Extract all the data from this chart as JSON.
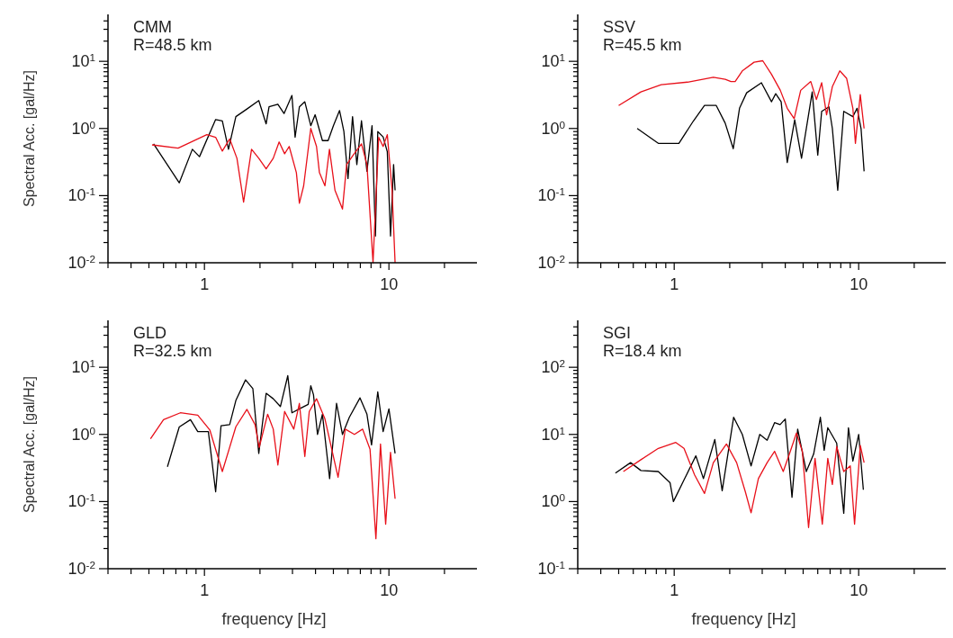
{
  "chart_data": [
    {
      "type": "line",
      "log": "xy",
      "annotations": [
        "CMM",
        "R=48.5 km"
      ],
      "ylabel": "Spectral Acc. [gal/Hz]",
      "xlim": [
        0.3,
        30
      ],
      "ylim": [
        0.01,
        50
      ],
      "xticks": [
        {
          "value": 0.3,
          "label": null
        },
        {
          "value": 0.4,
          "label": null
        },
        {
          "value": 0.5,
          "label": null
        },
        {
          "value": 0.6,
          "label": null
        },
        {
          "value": 0.7,
          "label": null
        },
        {
          "value": 0.8,
          "label": null
        },
        {
          "value": 0.9,
          "label": null
        },
        {
          "value": 1,
          "label": "1"
        },
        {
          "value": 2,
          "label": null
        },
        {
          "value": 3,
          "label": null
        },
        {
          "value": 4,
          "label": null
        },
        {
          "value": 5,
          "label": null
        },
        {
          "value": 6,
          "label": null
        },
        {
          "value": 7,
          "label": null
        },
        {
          "value": 8,
          "label": null
        },
        {
          "value": 9,
          "label": null
        },
        {
          "value": 10,
          "label": "10"
        },
        {
          "value": 20,
          "label": null
        }
      ],
      "yticks": [
        {
          "value": 0.01,
          "label": "10$^{-2}$"
        },
        {
          "value": 0.02,
          "label": null
        },
        {
          "value": 0.03,
          "label": null
        },
        {
          "value": 0.04,
          "label": null
        },
        {
          "value": 0.05,
          "label": null
        },
        {
          "value": 0.06,
          "label": null
        },
        {
          "value": 0.07,
          "label": null
        },
        {
          "value": 0.08,
          "label": null
        },
        {
          "value": 0.09,
          "label": null
        },
        {
          "value": 0.1,
          "label": "10$^{-1}$"
        },
        {
          "value": 0.2,
          "label": null
        },
        {
          "value": 0.3,
          "label": null
        },
        {
          "value": 0.4,
          "label": null
        },
        {
          "value": 0.5,
          "label": null
        },
        {
          "value": 0.6,
          "label": null
        },
        {
          "value": 0.7,
          "label": null
        },
        {
          "value": 0.8,
          "label": null
        },
        {
          "value": 0.9,
          "label": null
        },
        {
          "value": 1,
          "label": "10$^{0}$"
        },
        {
          "value": 2,
          "label": null
        },
        {
          "value": 3,
          "label": null
        },
        {
          "value": 4,
          "label": null
        },
        {
          "value": 5,
          "label": null
        },
        {
          "value": 6,
          "label": null
        },
        {
          "value": 7,
          "label": null
        },
        {
          "value": 8,
          "label": null
        },
        {
          "value": 9,
          "label": null
        },
        {
          "value": 10,
          "label": "10$^{1}$"
        },
        {
          "value": 20,
          "label": null
        },
        {
          "value": 30,
          "label": null
        },
        {
          "value": 40,
          "label": null
        }
      ],
      "series": [
        {
          "color": "#000000",
          "x": [
            0.53,
            0.73,
            0.86,
            0.94,
            1.15,
            1.25,
            1.35,
            1.48,
            1.7,
            1.97,
            2.16,
            2.24,
            2.5,
            2.7,
            2.98,
            3.1,
            3.27,
            3.5,
            3.77,
            3.98,
            4.36,
            4.68,
            5.0,
            5.4,
            5.7,
            6.0,
            6.35,
            6.7,
            7.1,
            7.6,
            8.1,
            8.45,
            8.7,
            9.3,
            9.8,
            10.2,
            10.6,
            10.8
          ],
          "values": [
            0.59,
            0.155,
            0.49,
            0.38,
            1.36,
            1.3,
            0.49,
            1.5,
            1.95,
            2.6,
            1.17,
            2.1,
            2.3,
            1.67,
            3.1,
            0.74,
            2.1,
            2.5,
            1.1,
            1.6,
            0.66,
            0.66,
            1.1,
            1.85,
            0.9,
            0.18,
            1.5,
            0.29,
            1.3,
            0.23,
            1.1,
            0.025,
            0.9,
            0.75,
            0.45,
            0.025,
            0.29,
            0.12
          ]
        },
        {
          "color": "#e8101a",
          "x": [
            0.52,
            0.72,
            1.03,
            1.15,
            1.25,
            1.37,
            1.5,
            1.63,
            1.8,
            1.97,
            2.16,
            2.36,
            2.54,
            2.72,
            2.88,
            3.15,
            3.27,
            3.45,
            3.77,
            4.05,
            4.2,
            4.5,
            4.76,
            5.1,
            5.6,
            5.9,
            6.4,
            7.1,
            7.6,
            8.2,
            8.8,
            9.3,
            9.8,
            10.4,
            10.8
          ],
          "values": [
            0.57,
            0.51,
            0.81,
            0.74,
            0.46,
            0.7,
            0.36,
            0.08,
            0.49,
            0.36,
            0.25,
            0.36,
            0.63,
            0.42,
            0.54,
            0.22,
            0.077,
            0.14,
            1.0,
            0.54,
            0.22,
            0.14,
            0.49,
            0.12,
            0.063,
            0.29,
            0.4,
            0.59,
            0.29,
            0.01,
            0.74,
            0.54,
            0.81,
            0.12,
            0.01
          ]
        }
      ]
    },
    {
      "type": "line",
      "log": "xy",
      "annotations": [
        "SSV",
        "R=45.5 km"
      ],
      "xlim": [
        0.3,
        30
      ],
      "ylim": [
        0.01,
        50
      ],
      "xticks": [
        {
          "value": 0.3,
          "label": null
        },
        {
          "value": 0.4,
          "label": null
        },
        {
          "value": 0.5,
          "label": null
        },
        {
          "value": 0.6,
          "label": null
        },
        {
          "value": 0.7,
          "label": null
        },
        {
          "value": 0.8,
          "label": null
        },
        {
          "value": 0.9,
          "label": null
        },
        {
          "value": 1,
          "label": "1"
        },
        {
          "value": 2,
          "label": null
        },
        {
          "value": 3,
          "label": null
        },
        {
          "value": 4,
          "label": null
        },
        {
          "value": 5,
          "label": null
        },
        {
          "value": 6,
          "label": null
        },
        {
          "value": 7,
          "label": null
        },
        {
          "value": 8,
          "label": null
        },
        {
          "value": 9,
          "label": null
        },
        {
          "value": 10,
          "label": "10"
        },
        {
          "value": 20,
          "label": null
        }
      ],
      "yticks": [
        {
          "value": 0.01,
          "label": "10$^{-2}$"
        },
        {
          "value": 0.02,
          "label": null
        },
        {
          "value": 0.03,
          "label": null
        },
        {
          "value": 0.04,
          "label": null
        },
        {
          "value": 0.05,
          "label": null
        },
        {
          "value": 0.06,
          "label": null
        },
        {
          "value": 0.07,
          "label": null
        },
        {
          "value": 0.08,
          "label": null
        },
        {
          "value": 0.09,
          "label": null
        },
        {
          "value": 0.1,
          "label": "10$^{-1}$"
        },
        {
          "value": 0.2,
          "label": null
        },
        {
          "value": 0.3,
          "label": null
        },
        {
          "value": 0.4,
          "label": null
        },
        {
          "value": 0.5,
          "label": null
        },
        {
          "value": 0.6,
          "label": null
        },
        {
          "value": 0.7,
          "label": null
        },
        {
          "value": 0.8,
          "label": null
        },
        {
          "value": 0.9,
          "label": null
        },
        {
          "value": 1,
          "label": "10$^{0}$"
        },
        {
          "value": 2,
          "label": null
        },
        {
          "value": 3,
          "label": null
        },
        {
          "value": 4,
          "label": null
        },
        {
          "value": 5,
          "label": null
        },
        {
          "value": 6,
          "label": null
        },
        {
          "value": 7,
          "label": null
        },
        {
          "value": 8,
          "label": null
        },
        {
          "value": 9,
          "label": null
        },
        {
          "value": 10,
          "label": "10$^{1}$"
        },
        {
          "value": 20,
          "label": null
        },
        {
          "value": 30,
          "label": null
        },
        {
          "value": 40,
          "label": null
        }
      ],
      "series": [
        {
          "color": "#000000",
          "x": [
            0.63,
            0.82,
            1.06,
            1.27,
            1.46,
            1.69,
            1.89,
            2.09,
            2.26,
            2.47,
            2.97,
            3.37,
            3.55,
            3.8,
            4.1,
            4.5,
            4.9,
            5.6,
            6.0,
            6.3,
            6.9,
            7.2,
            7.7,
            8.3,
            9.3,
            9.8,
            10.3,
            10.7
          ],
          "values": [
            1.0,
            0.6,
            0.6,
            1.29,
            2.2,
            2.2,
            1.2,
            0.5,
            2.0,
            3.4,
            4.8,
            2.5,
            3.3,
            2.5,
            0.31,
            1.35,
            0.36,
            3.5,
            0.4,
            1.8,
            2.1,
            1.0,
            0.12,
            1.8,
            1.5,
            2.0,
            1.0,
            0.23
          ]
        },
        {
          "color": "#e8101a",
          "x": [
            0.5,
            0.66,
            0.85,
            1.18,
            1.63,
            1.89,
            2.03,
            2.14,
            2.34,
            2.71,
            3.02,
            3.37,
            3.76,
            4.1,
            4.47,
            4.85,
            5.5,
            5.9,
            6.3,
            6.7,
            7.2,
            7.9,
            8.6,
            9.3,
            9.6,
            10.2,
            10.7
          ],
          "values": [
            2.2,
            3.5,
            4.5,
            4.9,
            5.8,
            5.4,
            5.0,
            5.0,
            7.2,
            9.7,
            10.2,
            6.4,
            3.7,
            2.0,
            1.4,
            3.7,
            5.0,
            2.7,
            4.8,
            1.6,
            4.2,
            7.2,
            5.6,
            2.0,
            0.6,
            3.2,
            1.0
          ]
        }
      ]
    },
    {
      "type": "line",
      "log": "xy",
      "annotations": [
        "GLD",
        "R=32.5 km"
      ],
      "xlabel": "frequency [Hz]",
      "ylabel": "Spectral Acc. [gal/Hz]",
      "xlim": [
        0.3,
        30
      ],
      "ylim": [
        0.01,
        50
      ],
      "xticks": [
        {
          "value": 0.3,
          "label": null
        },
        {
          "value": 0.4,
          "label": null
        },
        {
          "value": 0.5,
          "label": null
        },
        {
          "value": 0.6,
          "label": null
        },
        {
          "value": 0.7,
          "label": null
        },
        {
          "value": 0.8,
          "label": null
        },
        {
          "value": 0.9,
          "label": null
        },
        {
          "value": 1,
          "label": "1"
        },
        {
          "value": 2,
          "label": null
        },
        {
          "value": 3,
          "label": null
        },
        {
          "value": 4,
          "label": null
        },
        {
          "value": 5,
          "label": null
        },
        {
          "value": 6,
          "label": null
        },
        {
          "value": 7,
          "label": null
        },
        {
          "value": 8,
          "label": null
        },
        {
          "value": 9,
          "label": null
        },
        {
          "value": 10,
          "label": "10"
        },
        {
          "value": 20,
          "label": null
        }
      ],
      "yticks": [
        {
          "value": 0.01,
          "label": "10$^{-2}$"
        },
        {
          "value": 0.02,
          "label": null
        },
        {
          "value": 0.03,
          "label": null
        },
        {
          "value": 0.04,
          "label": null
        },
        {
          "value": 0.05,
          "label": null
        },
        {
          "value": 0.06,
          "label": null
        },
        {
          "value": 0.07,
          "label": null
        },
        {
          "value": 0.08,
          "label": null
        },
        {
          "value": 0.09,
          "label": null
        },
        {
          "value": 0.1,
          "label": "10$^{-1}$"
        },
        {
          "value": 0.2,
          "label": null
        },
        {
          "value": 0.3,
          "label": null
        },
        {
          "value": 0.4,
          "label": null
        },
        {
          "value": 0.5,
          "label": null
        },
        {
          "value": 0.6,
          "label": null
        },
        {
          "value": 0.7,
          "label": null
        },
        {
          "value": 0.8,
          "label": null
        },
        {
          "value": 0.9,
          "label": null
        },
        {
          "value": 1,
          "label": "10$^{0}$"
        },
        {
          "value": 2,
          "label": null
        },
        {
          "value": 3,
          "label": null
        },
        {
          "value": 4,
          "label": null
        },
        {
          "value": 5,
          "label": null
        },
        {
          "value": 6,
          "label": null
        },
        {
          "value": 7,
          "label": null
        },
        {
          "value": 8,
          "label": null
        },
        {
          "value": 9,
          "label": null
        },
        {
          "value": 10,
          "label": "10$^{1}$"
        },
        {
          "value": 20,
          "label": null
        },
        {
          "value": 30,
          "label": null
        },
        {
          "value": 40,
          "label": null
        }
      ],
      "series": [
        {
          "color": "#000000",
          "x": [
            0.63,
            0.73,
            0.84,
            0.92,
            1.05,
            1.15,
            1.23,
            1.37,
            1.48,
            1.67,
            1.83,
            1.97,
            2.16,
            2.36,
            2.58,
            2.83,
            2.98,
            3.27,
            3.65,
            3.77,
            3.9,
            4.1,
            4.36,
            4.77,
            5.2,
            5.6,
            6.1,
            6.97,
            7.6,
            8.05,
            8.7,
            9.3,
            10.0,
            10.8
          ],
          "values": [
            0.33,
            1.29,
            1.66,
            1.1,
            1.1,
            0.14,
            1.35,
            1.4,
            3.2,
            6.5,
            4.8,
            0.52,
            4.1,
            3.4,
            2.6,
            7.5,
            2.1,
            2.4,
            2.8,
            5.3,
            3.9,
            1.0,
            2.0,
            0.22,
            2.9,
            1.0,
            1.8,
            3.5,
            2.0,
            0.7,
            4.3,
            1.1,
            2.4,
            0.52
          ]
        },
        {
          "color": "#e8101a",
          "x": [
            0.51,
            0.6,
            0.74,
            0.92,
            1.07,
            1.25,
            1.48,
            1.7,
            1.88,
            1.98,
            2.2,
            2.36,
            2.5,
            2.72,
            3.05,
            3.27,
            3.5,
            3.7,
            4.05,
            4.5,
            5.3,
            5.8,
            6.5,
            7.2,
            7.9,
            8.5,
            9.0,
            9.6,
            10.2,
            10.8
          ],
          "values": [
            0.86,
            1.66,
            2.1,
            1.93,
            1.16,
            0.28,
            1.3,
            2.36,
            1.4,
            0.64,
            2.0,
            1.2,
            0.35,
            2.2,
            1.2,
            2.9,
            0.47,
            2.2,
            3.4,
            1.7,
            0.23,
            1.2,
            1.0,
            1.2,
            0.6,
            0.028,
            0.72,
            0.046,
            0.54,
            0.11
          ]
        }
      ]
    },
    {
      "type": "line",
      "log": "xy",
      "annotations": [
        "SGI",
        "R=18.4 km"
      ],
      "xlabel": "frequency [Hz]",
      "xlim": [
        0.3,
        30
      ],
      "ylim": [
        0.1,
        500
      ],
      "xticks": [
        {
          "value": 0.3,
          "label": null
        },
        {
          "value": 0.4,
          "label": null
        },
        {
          "value": 0.5,
          "label": null
        },
        {
          "value": 0.6,
          "label": null
        },
        {
          "value": 0.7,
          "label": null
        },
        {
          "value": 0.8,
          "label": null
        },
        {
          "value": 0.9,
          "label": null
        },
        {
          "value": 1,
          "label": "1"
        },
        {
          "value": 2,
          "label": null
        },
        {
          "value": 3,
          "label": null
        },
        {
          "value": 4,
          "label": null
        },
        {
          "value": 5,
          "label": null
        },
        {
          "value": 6,
          "label": null
        },
        {
          "value": 7,
          "label": null
        },
        {
          "value": 8,
          "label": null
        },
        {
          "value": 9,
          "label": null
        },
        {
          "value": 10,
          "label": "10"
        },
        {
          "value": 20,
          "label": null
        }
      ],
      "yticks": [
        {
          "value": 0.1,
          "label": "10$^{-1}$"
        },
        {
          "value": 0.2,
          "label": null
        },
        {
          "value": 0.3,
          "label": null
        },
        {
          "value": 0.4,
          "label": null
        },
        {
          "value": 0.5,
          "label": null
        },
        {
          "value": 0.6,
          "label": null
        },
        {
          "value": 0.7,
          "label": null
        },
        {
          "value": 0.8,
          "label": null
        },
        {
          "value": 0.9,
          "label": null
        },
        {
          "value": 1,
          "label": "10$^{0}$"
        },
        {
          "value": 2,
          "label": null
        },
        {
          "value": 3,
          "label": null
        },
        {
          "value": 4,
          "label": null
        },
        {
          "value": 5,
          "label": null
        },
        {
          "value": 6,
          "label": null
        },
        {
          "value": 7,
          "label": null
        },
        {
          "value": 8,
          "label": null
        },
        {
          "value": 9,
          "label": null
        },
        {
          "value": 10,
          "label": "10$^{1}$"
        },
        {
          "value": 20,
          "label": null
        },
        {
          "value": 30,
          "label": null
        },
        {
          "value": 40,
          "label": null
        },
        {
          "value": 50,
          "label": null
        },
        {
          "value": 60,
          "label": null
        },
        {
          "value": 70,
          "label": null
        },
        {
          "value": 80,
          "label": null
        },
        {
          "value": 90,
          "label": null
        },
        {
          "value": 100,
          "label": "10$^{2}$"
        },
        {
          "value": 200,
          "label": null
        },
        {
          "value": 300,
          "label": null
        },
        {
          "value": 400,
          "label": null
        }
      ],
      "series": [
        {
          "color": "#000000",
          "x": [
            0.48,
            0.58,
            0.66,
            0.82,
            0.95,
            0.99,
            1.14,
            1.31,
            1.44,
            1.66,
            1.82,
            2.1,
            2.34,
            2.61,
            2.91,
            3.19,
            3.5,
            3.75,
            4.0,
            4.35,
            4.67,
            5.2,
            5.7,
            6.2,
            6.5,
            6.8,
            7.6,
            8.3,
            8.8,
            9.3,
            10.0,
            10.6
          ],
          "values": [
            2.65,
            3.8,
            2.9,
            2.8,
            1.9,
            1.0,
            2.2,
            4.8,
            2.2,
            8.4,
            1.45,
            18,
            10,
            3.4,
            10,
            8.2,
            15,
            14,
            17,
            1.16,
            12,
            2.8,
            5.1,
            18,
            5.8,
            12.6,
            7.4,
            0.67,
            12.6,
            4.0,
            10,
            1.5
          ]
        },
        {
          "color": "#e8101a",
          "x": [
            0.53,
            0.66,
            0.82,
            1.02,
            1.13,
            1.29,
            1.46,
            1.63,
            1.92,
            2.18,
            2.43,
            2.61,
            2.86,
            3.19,
            3.5,
            3.9,
            4.2,
            4.6,
            4.95,
            5.35,
            5.8,
            6.35,
            6.8,
            7.2,
            7.6,
            8.3,
            9.0,
            9.5,
            10.2,
            10.7
          ],
          "values": [
            2.8,
            4.2,
            6.2,
            7.6,
            6.2,
            2.5,
            1.32,
            3.8,
            7.2,
            3.8,
            1.4,
            0.68,
            2.2,
            3.8,
            5.6,
            2.8,
            5.0,
            10.5,
            5.6,
            0.41,
            4.4,
            0.46,
            4.4,
            1.8,
            6.6,
            2.8,
            3.4,
            0.46,
            6.9,
            3.8
          ]
        }
      ]
    }
  ]
}
